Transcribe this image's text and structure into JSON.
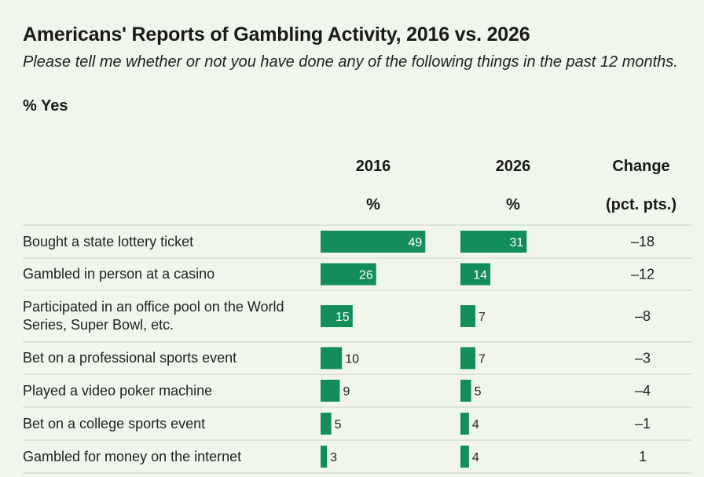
{
  "header": {
    "title": "Americans' Reports of Gambling Activity, 2016 vs. 2026",
    "subtitle": "Please tell me whether or not you have done any of the following things in the past 12 months.",
    "unit": "% Yes"
  },
  "columns": {
    "col2016_year": "2016",
    "col2016_unit": "%",
    "col2026_year": "2026",
    "col2026_unit": "%",
    "change_title": "Change",
    "change_unit": "(pct. pts.)"
  },
  "chart_data": {
    "type": "bar",
    "title": "Americans' Reports of Gambling Activity, 2016 vs. 2026",
    "subtitle": "Please tell me whether or not you have done any of the following things in the past 12 months.",
    "categories": [
      "Bought a state lottery ticket",
      "Gambled in person at a casino",
      "Participated in an office pool on the World Series, Super Bowl, etc.",
      "Bet on a professional sports event",
      "Played a video poker machine",
      "Bet on a college sports event",
      "Gambled for money on the internet"
    ],
    "series": [
      {
        "name": "2016",
        "values": [
          49,
          26,
          15,
          10,
          9,
          5,
          3
        ]
      },
      {
        "name": "2026",
        "values": [
          31,
          14,
          7,
          7,
          5,
          4,
          4
        ]
      }
    ],
    "change": [
      "–18",
      "–12",
      "–8",
      "–3",
      "–4",
      "–1",
      "1"
    ],
    "bar_color": "#138d5b",
    "grid": false
  }
}
